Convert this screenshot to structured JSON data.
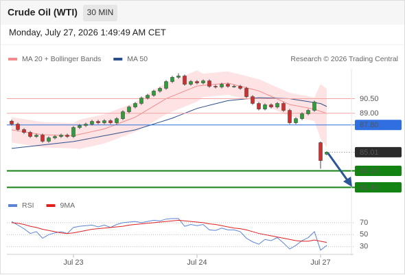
{
  "header": {
    "title": "Crude Oil (WTI)",
    "timeframe": "30 MIN",
    "timestamp": "Monday, July 27, 2026 1:49:49 AM CET"
  },
  "chart_data": [
    {
      "type": "candlestick",
      "source": "Research © 2026 Trading Central",
      "categories": [
        null,
        null,
        null,
        null,
        null,
        null,
        null,
        null,
        null,
        null,
        "Jul 23",
        null,
        null,
        null,
        null,
        null,
        null,
        null,
        null,
        null,
        null,
        null,
        null,
        null,
        null,
        null,
        null,
        null,
        null,
        null,
        "Jul 24",
        null,
        null,
        null,
        null,
        null,
        null,
        null,
        null,
        null,
        null,
        null,
        null,
        null,
        null,
        null,
        null,
        null,
        null,
        null,
        "Jul 27",
        null
      ],
      "open": [
        88.2,
        87.89,
        87.33,
        87.04,
        86.62,
        86.76,
        86.13,
        86.48,
        86.62,
        86.76,
        86.62,
        87.54,
        87.75,
        87.89,
        88.17,
        88.03,
        88.24,
        88.03,
        88.45,
        89.16,
        89.65,
        90.01,
        90.57,
        90.85,
        91.28,
        91.56,
        92.26,
        92.69,
        92.83,
        91.98,
        92.26,
        92.12,
        92.33,
        91.77,
        91.7,
        91.98,
        91.77,
        91.77,
        91.56,
        90.71,
        90.01,
        89.44,
        89.87,
        89.65,
        90.01,
        89.3,
        88.03,
        88.45,
        88.95,
        89.3,
        85.99,
        84.8
      ],
      "high": [
        88.35,
        88.04,
        87.48,
        87.19,
        86.91,
        86.91,
        86.63,
        86.77,
        86.91,
        86.91,
        87.69,
        87.9,
        88.04,
        88.32,
        88.32,
        88.39,
        88.39,
        88.6,
        89.31,
        89.8,
        90.16,
        90.72,
        91.0,
        91.43,
        91.71,
        92.41,
        92.84,
        93.1,
        92.98,
        92.41,
        92.41,
        92.48,
        92.48,
        91.92,
        92.13,
        92.13,
        91.92,
        91.92,
        91.71,
        90.86,
        90.16,
        90.02,
        90.02,
        90.16,
        90.16,
        89.45,
        88.6,
        89.1,
        89.45,
        90.3,
        86.1,
        85.1
      ],
      "low": [
        87.74,
        87.18,
        86.89,
        86.47,
        86.47,
        85.98,
        85.98,
        86.33,
        86.47,
        86.47,
        86.47,
        87.39,
        87.6,
        87.74,
        87.88,
        87.88,
        87.88,
        87.88,
        88.3,
        89.01,
        89.5,
        89.86,
        90.42,
        90.7,
        91.13,
        91.41,
        92.11,
        92.54,
        91.83,
        91.83,
        91.97,
        91.97,
        91.62,
        91.55,
        91.55,
        91.62,
        91.62,
        91.41,
        90.56,
        89.86,
        89.29,
        89.29,
        89.5,
        89.5,
        89.15,
        87.88,
        87.88,
        88.3,
        88.8,
        89.15,
        83.31,
        84.7
      ],
      "close": [
        87.89,
        87.33,
        87.04,
        86.62,
        86.76,
        86.13,
        86.48,
        86.62,
        86.76,
        86.62,
        87.54,
        87.75,
        87.89,
        88.17,
        88.03,
        88.24,
        88.03,
        88.45,
        89.16,
        89.65,
        90.01,
        90.57,
        90.85,
        91.28,
        91.56,
        92.26,
        92.69,
        92.83,
        91.98,
        92.26,
        92.12,
        92.33,
        91.77,
        91.7,
        91.98,
        91.77,
        91.77,
        91.56,
        90.71,
        90.01,
        89.44,
        89.87,
        89.65,
        90.01,
        89.3,
        88.03,
        88.45,
        88.95,
        89.3,
        90.15,
        84.15,
        85.01
      ],
      "up_color": "#2e9e3a",
      "down_color": "#d12f2f",
      "series": [
        {
          "name": "MA 20 + Bollinger Bands",
          "color": "#f28b8b",
          "band_color": "#fde3e3",
          "values": [
            87.3,
            87.2,
            87.1,
            87.0,
            86.9,
            86.8,
            86.78,
            86.76,
            86.74,
            86.72,
            86.7,
            86.84,
            86.98,
            87.12,
            87.26,
            87.4,
            87.64,
            87.88,
            88.12,
            88.36,
            88.6,
            88.98,
            89.36,
            89.74,
            90.12,
            90.5,
            90.76,
            91.02,
            91.28,
            91.54,
            91.8,
            91.86,
            91.92,
            91.98,
            92.04,
            92.1,
            91.94,
            91.78,
            91.62,
            91.46,
            91.3,
            91.02,
            90.74,
            90.46,
            90.18,
            89.9,
            89.78,
            89.66,
            89.54,
            89.42,
            89.2,
            89.0
          ],
          "upper": [
            88.6,
            88.5,
            88.4,
            88.3,
            88.2,
            88.1,
            88.08,
            88.06,
            88.04,
            88.02,
            88.0,
            88.34,
            88.48,
            88.62,
            88.76,
            88.9,
            89.14,
            89.38,
            89.62,
            89.86,
            90.1,
            90.58,
            90.96,
            91.34,
            91.72,
            92.1,
            92.36,
            92.62,
            92.88,
            93.14,
            93.4,
            93.06,
            93.12,
            93.18,
            93.24,
            93.3,
            93.14,
            92.98,
            92.82,
            92.66,
            92.5,
            92.22,
            91.94,
            91.66,
            91.38,
            91.1,
            90.98,
            90.86,
            90.74,
            90.62,
            92.0,
            91.5
          ],
          "lower": [
            86.0,
            85.9,
            85.8,
            85.7,
            85.6,
            85.5,
            85.48,
            85.46,
            85.44,
            85.42,
            85.4,
            85.34,
            85.48,
            85.62,
            85.76,
            85.9,
            86.14,
            86.38,
            86.62,
            86.86,
            87.1,
            87.38,
            87.76,
            88.14,
            88.52,
            88.9,
            89.16,
            89.42,
            89.68,
            89.94,
            90.2,
            90.66,
            90.72,
            90.78,
            90.84,
            90.9,
            90.74,
            90.58,
            90.42,
            90.26,
            90.1,
            89.82,
            89.54,
            89.26,
            88.98,
            88.7,
            88.58,
            88.46,
            88.34,
            88.22,
            86.4,
            85.5
          ]
        },
        {
          "name": "MA 50",
          "color": "#2c4f8c",
          "values": [
            85.4,
            85.47,
            85.54,
            85.61,
            85.68,
            85.75,
            85.82,
            85.89,
            85.96,
            86.03,
            86.1,
            86.22,
            86.34,
            86.46,
            86.58,
            86.7,
            86.82,
            86.94,
            87.06,
            87.18,
            87.3,
            87.5,
            87.7,
            87.9,
            88.1,
            88.3,
            88.5,
            88.75,
            89.0,
            89.25,
            89.5,
            89.66,
            89.82,
            89.98,
            90.14,
            90.3,
            90.36,
            90.42,
            90.48,
            90.54,
            90.6,
            90.58,
            90.56,
            90.54,
            90.52,
            90.5,
            90.4,
            90.3,
            90.2,
            90.1,
            90.0,
            89.7
          ]
        }
      ],
      "ylim": [
        80.5,
        93.5
      ],
      "yticks": [
        {
          "value": 90.5,
          "label": "90.50"
        },
        {
          "value": 89,
          "label": "89.00"
        },
        {
          "value": 87.8,
          "label": "87.80"
        },
        85.01,
        {
          "value": 83.1,
          "label": "83.10"
        },
        {
          "value": 81.4,
          "label": "81.40"
        }
      ],
      "ytick_colors": [
        "#f4a3a3",
        "#f4a3a3",
        "#2f6fe0",
        "#2b2b2b",
        "#138413",
        "#138413"
      ],
      "ytick_lines": [
        "solid",
        "solid",
        "solid",
        "dotted",
        "thick",
        "thick"
      ],
      "ytick_boxed": [
        false,
        false,
        true,
        true,
        true,
        true
      ]
    },
    {
      "type": "line",
      "series": [
        {
          "name": "RSI",
          "color": "#5b84d6",
          "values": [
            72,
            66,
            60,
            52,
            55,
            44,
            50,
            53,
            55,
            52,
            62,
            64,
            65,
            66,
            63,
            66,
            62,
            67,
            70,
            71,
            72,
            70,
            72,
            74,
            73,
            76,
            77,
            77,
            64,
            67,
            65,
            67,
            58,
            57,
            61,
            58,
            58,
            55,
            44,
            38,
            34,
            42,
            40,
            45,
            36,
            26,
            32,
            40,
            45,
            55,
            24,
            32
          ]
        },
        {
          "name": "9MA",
          "color": "#e02020",
          "values": [
            70,
            69,
            67,
            64,
            62,
            59,
            57,
            55,
            53,
            52,
            53,
            55,
            57,
            59,
            60,
            61,
            62,
            63,
            64,
            66,
            67,
            68,
            69,
            70,
            71,
            72,
            73,
            74,
            73,
            72,
            71,
            70,
            68,
            67,
            65,
            63,
            61,
            60,
            58,
            55,
            52,
            50,
            48,
            46,
            44,
            42,
            40,
            39,
            39,
            41,
            39,
            37
          ]
        }
      ],
      "ylim": [
        17,
        86
      ],
      "yticks": [
        70,
        50,
        30
      ],
      "grid": true
    }
  ]
}
